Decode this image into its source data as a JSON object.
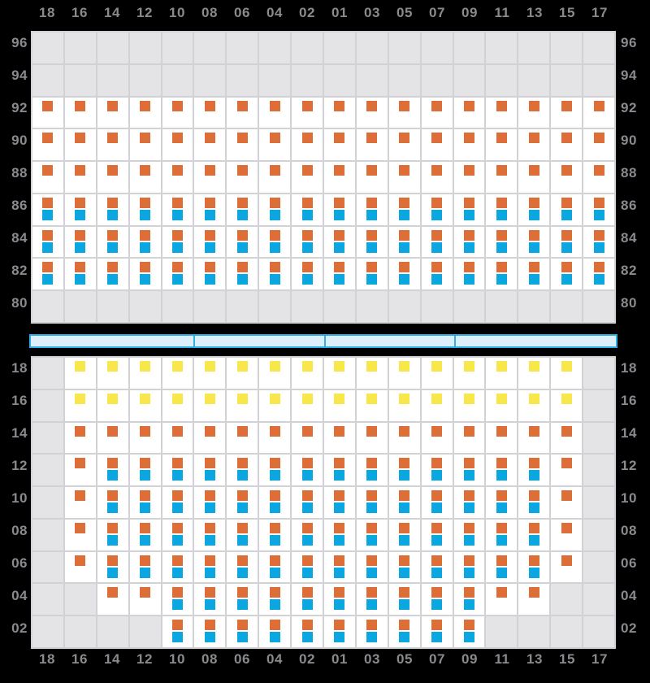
{
  "colors": {
    "background": "#000000",
    "label": "#8A8A8E",
    "grid_line": "#D2D2D6",
    "blocked_cell": "#E4E4E6",
    "seat_cell": "#FFFFFF",
    "orange": "#DE6E38",
    "blue": "#0AA7E1",
    "yellow": "#F8E74A",
    "aisle_border": "#2FAFE8",
    "aisle_fill": "#DCEFFB"
  },
  "cell_types": {
    "G": "blocked-gray",
    "O": "orange-indicator-only",
    "B": "orange-and-blue-indicators",
    "Y": "yellow-indicator-only"
  },
  "columns": [
    "18",
    "16",
    "14",
    "12",
    "10",
    "08",
    "06",
    "04",
    "02",
    "01",
    "03",
    "05",
    "07",
    "09",
    "11",
    "13",
    "15",
    "17"
  ],
  "top_panel": {
    "row_labels": [
      "96",
      "94",
      "92",
      "90",
      "88",
      "86",
      "84",
      "82",
      "80"
    ],
    "rows": [
      "GGGGGGGGGGGGGGGGGG",
      "GGGGGGGGGGGGGGGGGG",
      "OOOOOOOOOOOOOOOOOO",
      "OOOOOOOOOOOOOOOOOO",
      "OOOOOOOOOOOOOOOOOO",
      "BBBBBBBBBBBBBBBBBB",
      "BBBBBBBBBBBBBBBBBB",
      "BBBBBBBBBBBBBBBBBB",
      "GGGGGGGGGGGGGGGGGG"
    ]
  },
  "aisle": {
    "segment_widths": [
      203,
      161,
      160,
      200
    ]
  },
  "bottom_panel": {
    "row_labels": [
      "18",
      "16",
      "14",
      "12",
      "10",
      "08",
      "06",
      "04",
      "02"
    ],
    "rows": [
      "GYYYYYYYYYYYYYYYYG",
      "GYYYYYYYYYYYYYYYYG",
      "GOOOOOOOOOOOOOOOOG",
      "GOBBBBBBBBBBBBBBOG",
      "GOBBBBBBBBBBBBBBOG",
      "GOBBBBBBBBBBBBBBOG",
      "GOBBBBBBBBBBBBBBOG",
      "GGOOBBBBBBBBBBOOGG",
      "GGGGBBBBBBBBBBGGGG"
    ]
  }
}
